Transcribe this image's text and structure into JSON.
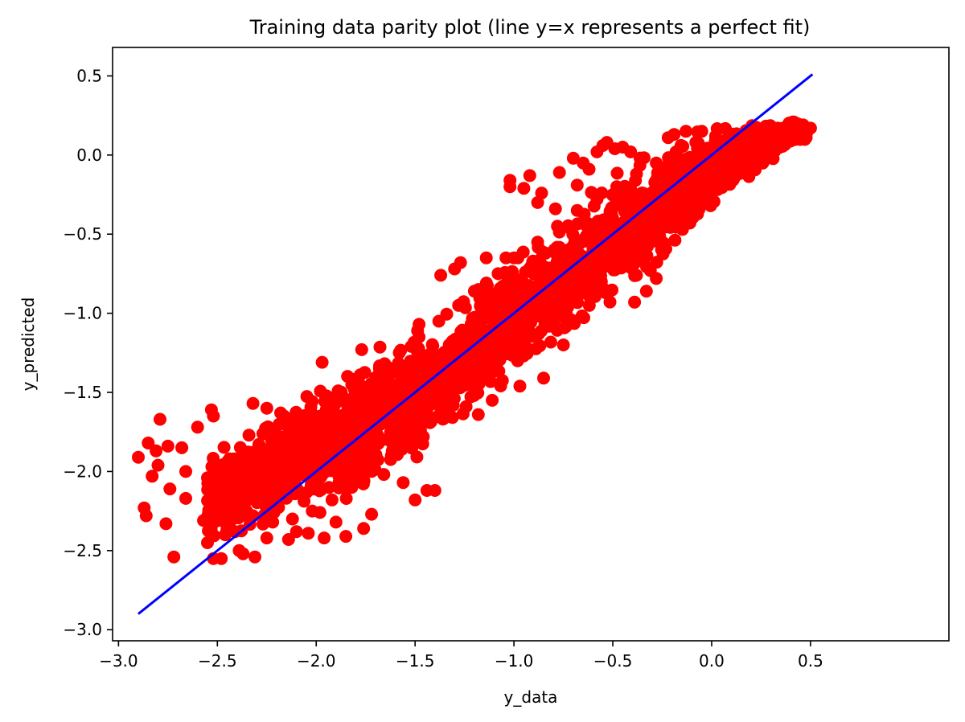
{
  "chart_data": {
    "type": "scatter",
    "title": "Training data parity plot (line y=x represents a perfect fit)",
    "xlabel": "y_data",
    "ylabel": "y_predicted",
    "xlim": [
      -3.03,
      1.2
    ],
    "ylim": [
      -3.07,
      0.68
    ],
    "xticks": [
      -3.0,
      -2.5,
      -2.0,
      -1.5,
      -1.0,
      -0.5,
      0.0,
      0.5
    ],
    "yticks": [
      -3.0,
      -2.5,
      -2.0,
      -1.5,
      -1.0,
      -0.5,
      0.0,
      0.5
    ],
    "xtick_labels": [
      "−3.0",
      "−2.5",
      "−2.0",
      "−1.5",
      "−1.0",
      "−0.5",
      "0.0",
      "0.5"
    ],
    "ytick_labels": [
      "−3.0",
      "−2.5",
      "−2.0",
      "−1.5",
      "−1.0",
      "−0.5",
      "0.0",
      "0.5"
    ],
    "grid": false,
    "legend": "none",
    "series": [
      {
        "kind": "scatter",
        "color": "#ff0000",
        "points": [
          [
            -2.9,
            -1.91
          ],
          [
            -2.87,
            -2.23
          ],
          [
            -2.86,
            -2.28
          ],
          [
            -2.85,
            -1.82
          ],
          [
            -2.83,
            -2.03
          ],
          [
            -2.81,
            -1.87
          ],
          [
            -2.8,
            -1.96
          ],
          [
            -2.79,
            -1.67
          ],
          [
            -2.76,
            -2.33
          ],
          [
            -2.75,
            -1.84
          ],
          [
            -2.74,
            -2.11
          ],
          [
            -2.72,
            -2.54
          ],
          [
            -2.68,
            -1.85
          ],
          [
            -2.66,
            -2.17
          ],
          [
            -2.66,
            -2.0
          ],
          [
            -2.6,
            -1.72
          ],
          [
            -2.57,
            -2.31
          ],
          [
            -2.55,
            -2.04
          ],
          [
            -2.55,
            -2.45
          ],
          [
            -2.54,
            -2.19
          ],
          [
            -2.53,
            -1.61
          ],
          [
            -2.52,
            -1.65
          ],
          [
            -2.52,
            -2.55
          ],
          [
            -2.48,
            -2.55
          ],
          [
            -2.46,
            -2.4
          ],
          [
            -2.43,
            -2.3
          ],
          [
            -2.41,
            -2.38
          ],
          [
            -2.39,
            -2.5
          ],
          [
            -2.37,
            -2.52
          ],
          [
            -2.34,
            -1.77
          ],
          [
            -2.32,
            -1.57
          ],
          [
            -2.31,
            -2.54
          ],
          [
            -2.25,
            -1.6
          ],
          [
            -2.25,
            -2.42
          ],
          [
            -2.18,
            -1.63
          ],
          [
            -2.14,
            -2.43
          ],
          [
            -2.1,
            -2.38
          ],
          [
            -2.07,
            -1.65
          ],
          [
            -2.04,
            -2.39
          ],
          [
            -1.97,
            -1.31
          ],
          [
            -1.96,
            -2.42
          ],
          [
            -1.92,
            -1.66
          ],
          [
            -1.9,
            -2.32
          ],
          [
            -1.85,
            -2.41
          ],
          [
            -1.82,
            -1.45
          ],
          [
            -1.77,
            -1.23
          ],
          [
            -1.76,
            -2.36
          ],
          [
            -1.72,
            -2.27
          ],
          [
            -1.7,
            -1.75
          ],
          [
            -1.68,
            -1.61
          ],
          [
            -1.64,
            -1.34
          ],
          [
            -1.6,
            -1.61
          ],
          [
            -1.56,
            -2.07
          ],
          [
            -1.52,
            -1.48
          ],
          [
            -1.5,
            -2.18
          ],
          [
            -1.48,
            -1.07
          ],
          [
            -1.46,
            -1.38
          ],
          [
            -1.44,
            -2.12
          ],
          [
            -1.4,
            -2.12
          ],
          [
            -1.37,
            -0.76
          ],
          [
            -1.33,
            -1.5
          ],
          [
            -1.3,
            -0.72
          ],
          [
            -1.27,
            -0.68
          ],
          [
            -1.2,
            -0.86
          ],
          [
            -1.18,
            -1.64
          ],
          [
            -1.14,
            -0.65
          ],
          [
            -1.11,
            -1.55
          ],
          [
            -1.02,
            -0.16
          ],
          [
            -1.02,
            -0.2
          ],
          [
            -1.0,
            -0.65
          ],
          [
            -0.97,
            -1.46
          ],
          [
            -0.95,
            -0.21
          ],
          [
            -0.92,
            -0.13
          ],
          [
            -0.88,
            -0.3
          ],
          [
            -0.86,
            -0.24
          ],
          [
            -0.85,
            -1.41
          ],
          [
            -0.79,
            -0.34
          ],
          [
            -0.77,
            -0.11
          ],
          [
            -0.75,
            -1.2
          ],
          [
            -0.7,
            -0.02
          ],
          [
            -0.68,
            -0.19
          ],
          [
            -0.65,
            -0.05
          ],
          [
            -0.62,
            -0.09
          ],
          [
            -0.58,
            0.02
          ],
          [
            -0.55,
            0.06
          ],
          [
            -0.53,
            0.08
          ],
          [
            -0.49,
            0.04
          ],
          [
            -0.45,
            0.05
          ],
          [
            -0.41,
            0.02
          ],
          [
            -0.39,
            -0.93
          ],
          [
            -0.38,
            -0.76
          ],
          [
            -0.36,
            -0.6
          ],
          [
            -0.33,
            -0.86
          ],
          [
            -0.31,
            -0.73
          ],
          [
            -0.28,
            -0.78
          ],
          [
            -0.22,
            0.11
          ],
          [
            -0.19,
            0.13
          ],
          [
            -0.13,
            0.15
          ],
          [
            -0.11,
            -0.43
          ],
          [
            -0.05,
            0.15
          ],
          [
            0.02,
            0.12
          ],
          [
            0.06,
            -0.02
          ],
          [
            0.09,
            0.13
          ],
          [
            0.14,
            0.1
          ],
          [
            0.18,
            0.14
          ],
          [
            0.22,
            0.14
          ],
          [
            0.26,
            0.14
          ],
          [
            0.3,
            0.16
          ],
          [
            0.34,
            0.16
          ],
          [
            0.38,
            0.15
          ],
          [
            0.41,
            0.13
          ],
          [
            0.45,
            0.17
          ],
          [
            0.48,
            0.14
          ],
          [
            0.5,
            0.17
          ],
          [
            0.43,
            0.11
          ],
          [
            0.36,
            0.08
          ],
          [
            0.25,
            0.02
          ],
          [
            0.13,
            -0.08
          ],
          [
            0.04,
            -0.12
          ],
          [
            -0.02,
            -0.2
          ],
          [
            -0.08,
            -0.27
          ],
          [
            -0.15,
            -0.38
          ],
          [
            -0.24,
            -0.45
          ],
          [
            -0.32,
            -0.5
          ],
          [
            -0.42,
            -0.58
          ],
          [
            -0.52,
            -0.68
          ],
          [
            -0.62,
            -0.78
          ],
          [
            -0.72,
            -0.9
          ],
          [
            -0.82,
            -1.0
          ],
          [
            -0.92,
            -1.12
          ],
          [
            -1.02,
            -1.22
          ],
          [
            -1.12,
            -1.35
          ],
          [
            -1.22,
            -1.45
          ],
          [
            -1.32,
            -1.57
          ],
          [
            -1.42,
            -1.68
          ],
          [
            -1.52,
            -1.78
          ],
          [
            -1.62,
            -1.9
          ],
          [
            -1.72,
            -2.0
          ],
          [
            -1.82,
            -2.1
          ],
          [
            -1.92,
            -2.18
          ],
          [
            -2.02,
            -2.25
          ],
          [
            -2.12,
            -2.3
          ],
          [
            -2.22,
            -2.32
          ],
          [
            -2.32,
            -2.28
          ],
          [
            -2.42,
            -2.2
          ],
          [
            -2.5,
            -2.12
          ],
          [
            -2.38,
            -2.05
          ],
          [
            -2.28,
            -1.95
          ],
          [
            -2.18,
            -1.85
          ],
          [
            -2.08,
            -1.75
          ],
          [
            -1.98,
            -1.65
          ],
          [
            -1.88,
            -1.55
          ],
          [
            -1.78,
            -1.45
          ],
          [
            -1.68,
            -1.35
          ],
          [
            -1.58,
            -1.25
          ],
          [
            -1.48,
            -1.15
          ],
          [
            -1.38,
            -1.05
          ],
          [
            -1.28,
            -0.95
          ],
          [
            -1.18,
            -0.85
          ],
          [
            -1.08,
            -0.75
          ],
          [
            -0.98,
            -0.65
          ],
          [
            -0.88,
            -0.55
          ],
          [
            -0.78,
            -0.45
          ],
          [
            -0.68,
            -0.35
          ],
          [
            -0.58,
            -0.28
          ],
          [
            -0.48,
            -0.2
          ],
          [
            -0.38,
            -0.12
          ],
          [
            -0.28,
            -0.05
          ],
          [
            -0.18,
            0.02
          ],
          [
            -0.08,
            0.08
          ],
          [
            0.02,
            0.1
          ],
          [
            0.12,
            0.11
          ]
        ]
      },
      {
        "kind": "line",
        "name": "",
        "color": "#0000ff",
        "x": [
          -2.9,
          0.51
        ],
        "y": [
          -2.9,
          0.51
        ]
      }
    ],
    "dense_band": {
      "color": "#ff0000",
      "centers_x": [
        -2.55,
        -2.4,
        -2.2,
        -2.0,
        -1.8,
        -1.6,
        -1.4,
        -1.2,
        -1.0,
        -0.8,
        -0.6,
        -0.4,
        -0.2,
        0.0,
        0.2,
        0.4
      ],
      "centers_y": [
        -2.17,
        -2.1,
        -1.98,
        -1.88,
        -1.74,
        -1.6,
        -1.44,
        -1.25,
        -1.03,
        -0.83,
        -0.64,
        -0.45,
        -0.27,
        -0.09,
        0.05,
        0.14
      ],
      "spread_y": [
        0.2,
        0.25,
        0.28,
        0.3,
        0.3,
        0.3,
        0.3,
        0.3,
        0.3,
        0.3,
        0.3,
        0.28,
        0.26,
        0.2,
        0.14,
        0.06
      ],
      "count": 2600
    }
  }
}
